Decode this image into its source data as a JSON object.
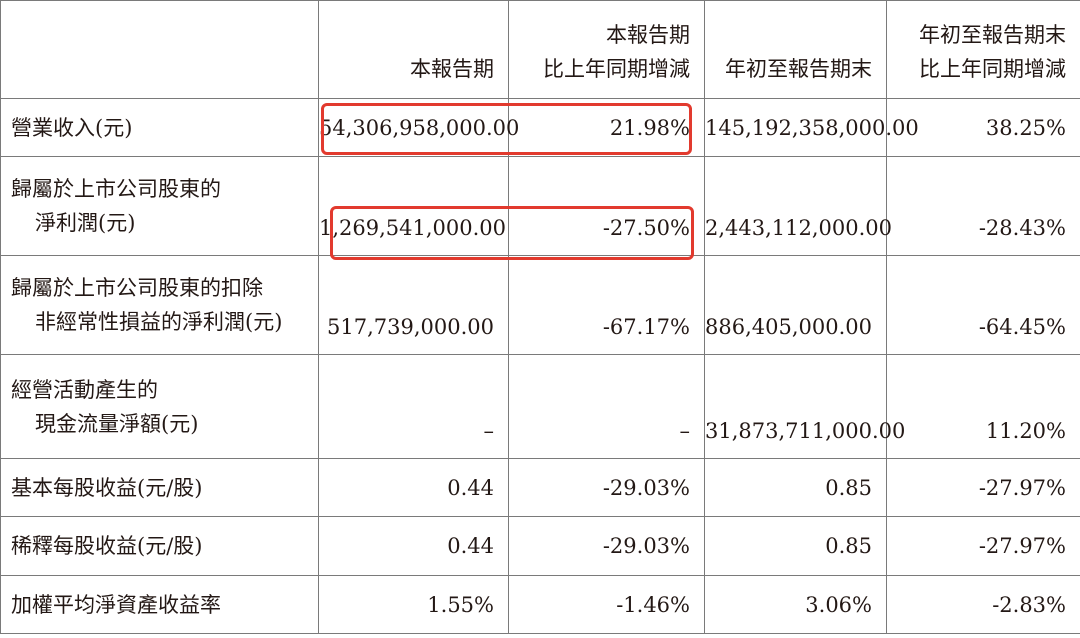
{
  "headers": [
    "",
    "本報告期",
    [
      "本報告期",
      "比上年同期增減"
    ],
    "年初至報告期末",
    [
      "年初至報告期末",
      "比上年同期增減"
    ]
  ],
  "rows": [
    {
      "label": [
        "營業收入(元)"
      ],
      "values": [
        "54,306,958,000.00",
        "21.98%",
        "145,192,358,000.00",
        "38.25%"
      ]
    },
    {
      "label": [
        "歸屬於上市公司股東的",
        "淨利潤(元)"
      ],
      "values": [
        "1,269,541,000.00",
        "-27.50%",
        "2,443,112,000.00",
        "-28.43%"
      ]
    },
    {
      "label": [
        "歸屬於上市公司股東的扣除",
        "非經常性損益的淨利潤(元)"
      ],
      "values": [
        "517,739,000.00",
        "-67.17%",
        "886,405,000.00",
        "-64.45%"
      ]
    },
    {
      "label": [
        "經營活動產生的",
        "現金流量淨額(元)"
      ],
      "values": [
        "–",
        "–",
        "31,873,711,000.00",
        "11.20%"
      ]
    },
    {
      "label": [
        "基本每股收益(元/股)"
      ],
      "values": [
        "0.44",
        "-29.03%",
        "0.85",
        "-27.97%"
      ]
    },
    {
      "label": [
        "稀釋每股收益(元/股)"
      ],
      "values": [
        "0.44",
        "-29.03%",
        "0.85",
        "-27.97%"
      ]
    },
    {
      "label": [
        "加權平均淨資產收益率"
      ],
      "values": [
        "1.55%",
        "-1.46%",
        "3.06%",
        "-2.83%"
      ]
    }
  ],
  "highlight_color": "#e23a2e"
}
